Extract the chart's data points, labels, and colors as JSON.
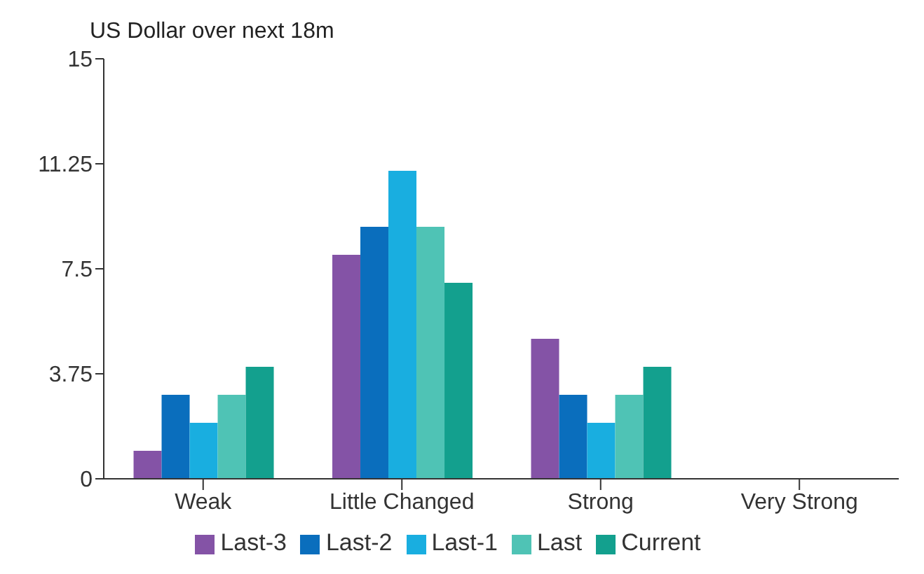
{
  "chart_data": {
    "type": "bar",
    "title": "US Dollar over next 18m",
    "categories": [
      "Weak",
      "Little Changed",
      "Strong",
      "Very Strong"
    ],
    "series": [
      {
        "name": "Last-3",
        "color": "#8453a6",
        "values": [
          1,
          8,
          5,
          0
        ]
      },
      {
        "name": "Last-2",
        "color": "#0a6ebd",
        "values": [
          3,
          9,
          3,
          0
        ]
      },
      {
        "name": "Last-1",
        "color": "#19aee0",
        "values": [
          2,
          11,
          2,
          0
        ]
      },
      {
        "name": "Last",
        "color": "#4fc3b5",
        "values": [
          3,
          9,
          3,
          0
        ]
      },
      {
        "name": "Current",
        "color": "#13a08e",
        "values": [
          4,
          7,
          4,
          0
        ]
      }
    ],
    "ylim": [
      0,
      15
    ],
    "yticks": [
      0,
      3.75,
      7.5,
      11.25,
      15
    ],
    "grid": false,
    "legend": "bottom"
  }
}
